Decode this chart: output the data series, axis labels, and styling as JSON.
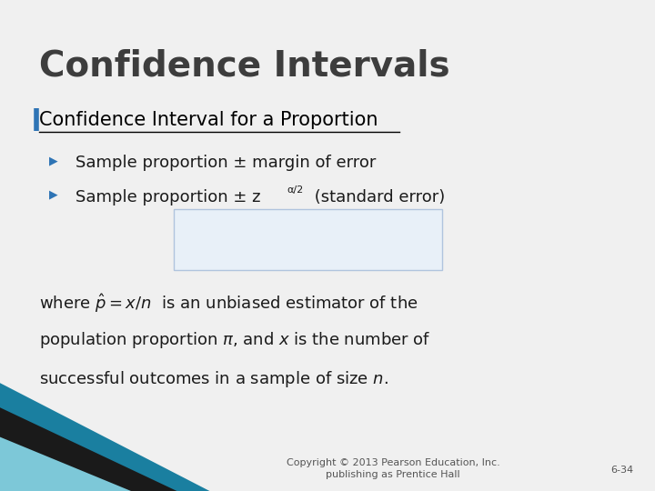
{
  "title": "Confidence Intervals",
  "title_color": "#3d3d3d",
  "title_fontsize": 28,
  "title_bold": true,
  "bg_color": "#e8e8e8",
  "slide_bg": "#f0f0f0",
  "subtitle": "Confidence Interval for a Proportion",
  "subtitle_color": "#000000",
  "subtitle_fontsize": 15,
  "bullet_color": "#2e74b5",
  "bullet1": "Sample proportion ± margin of error",
  "bullet2": "Sample proportion ± z",
  "bullet2_sub": "α/2",
  "bullet2_end": " (standard error)",
  "formula_box_color": "#e8f0f8",
  "formula_box_edge": "#b0c4de",
  "body_text_color": "#1a1a1a",
  "body_fontsize": 13,
  "footer_text1": "Copyright © 2013 Pearson Education, Inc.",
  "footer_text2": "publishing as Prentice Hall",
  "footer_slide": "6-34",
  "footer_color": "#555555",
  "footer_fontsize": 8,
  "teal_stripe": true
}
